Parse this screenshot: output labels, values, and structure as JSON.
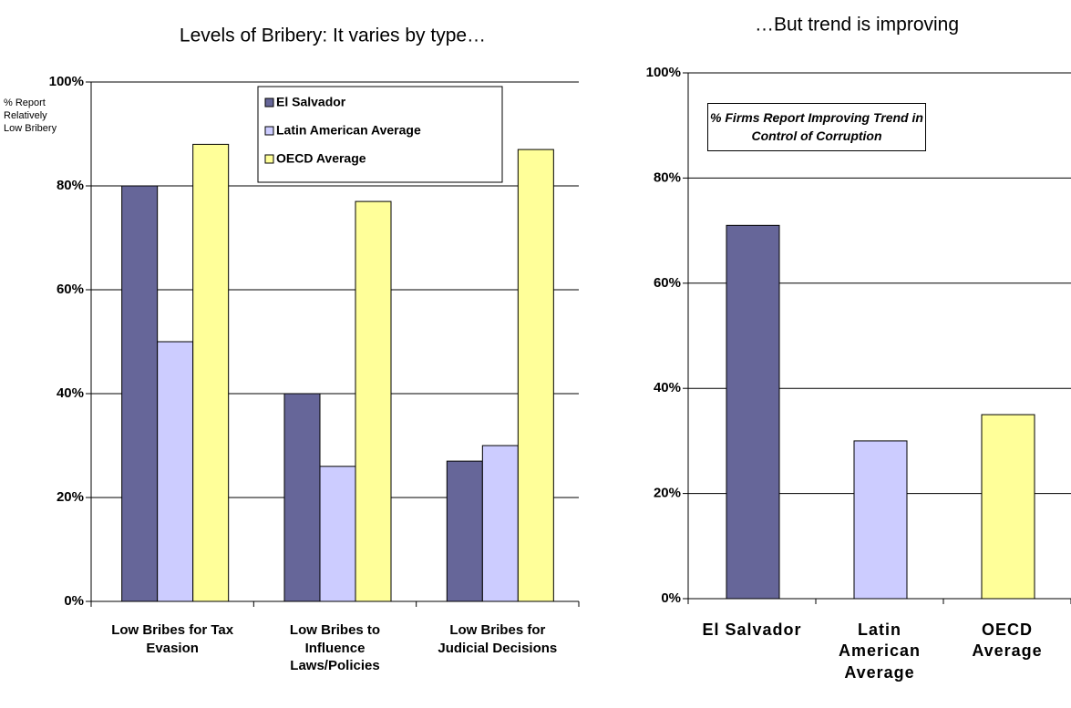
{
  "chart_data": [
    {
      "type": "bar",
      "title": "Levels of Bribery: It varies by type…",
      "y_label": "% Report Relatively Low Bribery",
      "categories": [
        "Low Bribes for Tax Evasion",
        "Low Bribes to Influence Laws/Policies",
        "Low Bribes for Judicial Decisions"
      ],
      "series": [
        {
          "name": "El Salvador",
          "color": "#666699",
          "values": [
            80,
            40,
            27
          ]
        },
        {
          "name": "Latin American Average",
          "color": "#ccccff",
          "values": [
            50,
            26,
            30
          ]
        },
        {
          "name": "OECD Average",
          "color": "#ffff99",
          "values": [
            88,
            77,
            87
          ]
        }
      ],
      "ylim": [
        0,
        100
      ],
      "yticks": [
        {
          "value": 0,
          "label": "0%"
        },
        {
          "value": 20,
          "label": "20%"
        },
        {
          "value": 40,
          "label": "40%"
        },
        {
          "value": 60,
          "label": "60%"
        },
        {
          "value": 80,
          "label": "80%"
        },
        {
          "value": 100,
          "label": "100%"
        }
      ],
      "grid": true,
      "legend": "top"
    },
    {
      "type": "bar",
      "title": "…But trend is improving",
      "annotation": "% Firms Report Improving Trend in Control of Corruption",
      "categories": [
        "El Salvador",
        "Latin American Average",
        "OECD Average"
      ],
      "values": [
        71,
        30,
        35
      ],
      "colors": [
        "#666699",
        "#ccccff",
        "#ffff99"
      ],
      "ylim": [
        0,
        100
      ],
      "yticks": [
        {
          "value": 0,
          "label": "0%"
        },
        {
          "value": 20,
          "label": "20%"
        },
        {
          "value": 40,
          "label": "40%"
        },
        {
          "value": 60,
          "label": "60%"
        },
        {
          "value": 80,
          "label": "80%"
        },
        {
          "value": 100,
          "label": "100%"
        }
      ],
      "grid": true
    }
  ]
}
